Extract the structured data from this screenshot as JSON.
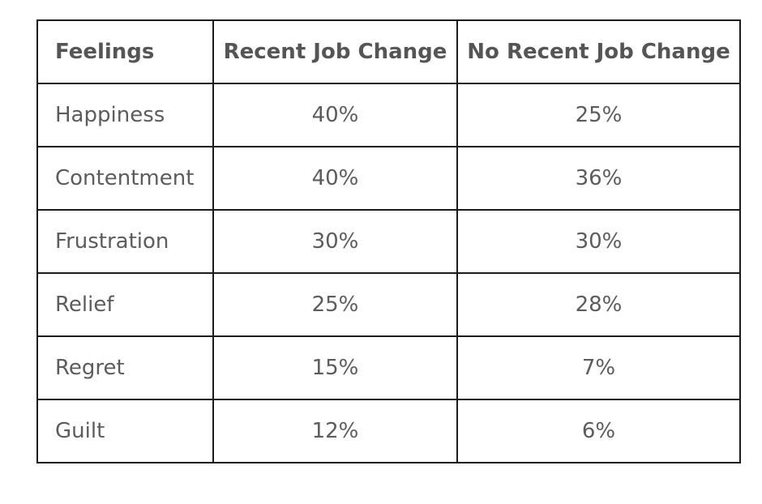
{
  "chart_data": {
    "type": "table",
    "columns": [
      "Feelings",
      "Recent Job Change",
      "No Recent Job Change"
    ],
    "rows": [
      [
        "Happiness",
        "40%",
        "25%"
      ],
      [
        "Contentment",
        "40%",
        "36%"
      ],
      [
        "Frustration",
        "30%",
        "30%"
      ],
      [
        "Relief",
        "25%",
        "28%"
      ],
      [
        "Regret",
        "15%",
        "7%"
      ],
      [
        "Guilt",
        "12%",
        "6%"
      ]
    ],
    "series": [
      {
        "name": "Recent Job Change",
        "values": [
          40,
          40,
          30,
          25,
          15,
          12
        ]
      },
      {
        "name": "No Recent Job Change",
        "values": [
          25,
          36,
          30,
          28,
          7,
          6
        ]
      }
    ],
    "categories": [
      "Happiness",
      "Contentment",
      "Frustration",
      "Relief",
      "Regret",
      "Guilt"
    ]
  }
}
